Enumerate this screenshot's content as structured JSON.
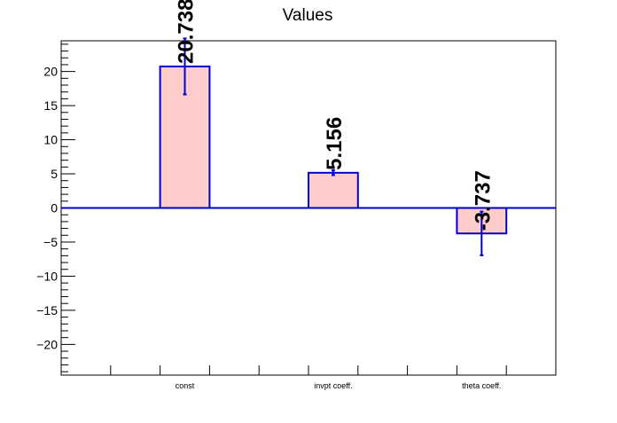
{
  "chart_data": {
    "type": "bar",
    "title": "Values",
    "xlabel": "",
    "ylabel": "",
    "categories": [
      "const",
      "invpt coeff.",
      "theta coeff."
    ],
    "values": [
      20.738,
      5.156,
      -3.737
    ],
    "value_labels": [
      "20.738",
      "5.156",
      "-3.737"
    ],
    "errors": [
      4.1,
      0.35,
      3.2
    ],
    "ylim": [
      -24.5,
      24.5
    ],
    "yticks": [
      -20,
      -15,
      -10,
      -5,
      0,
      5,
      10,
      15,
      20
    ],
    "ytick_labels": [
      "−20",
      "−15",
      "−10",
      "−5",
      "0",
      "5",
      "10",
      "15",
      "20"
    ],
    "grid": false,
    "legend": "none",
    "colors": {
      "bar_fill": "#ffcccc",
      "bar_edge": "#0000cc",
      "zero_line": "#0000cc",
      "axis": "#000000"
    }
  }
}
